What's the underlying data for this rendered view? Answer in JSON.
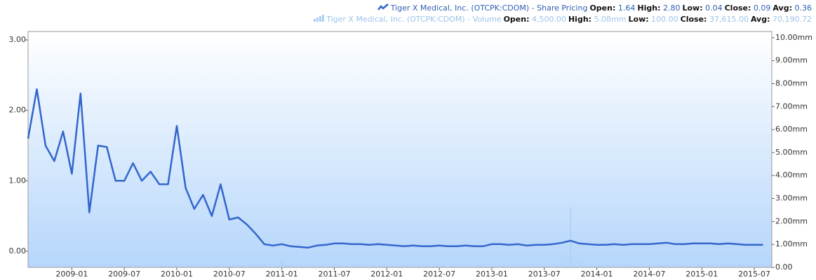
{
  "chart_data": {
    "type": "line",
    "legend": [
      {
        "name": "Tiger X Medical, Inc. (OTCPK:CDOM) - Share Pricing",
        "stats": [
          {
            "label": "Open:",
            "value": "1.64"
          },
          {
            "label": "High:",
            "value": "2.80"
          },
          {
            "label": "Low:",
            "value": "0.04"
          },
          {
            "label": "Close:",
            "value": "0.09"
          },
          {
            "label": "Avg:",
            "value": "0.36"
          }
        ]
      },
      {
        "name": "Tiger X Medical, Inc. (OTCPK:CDOM) - Volume",
        "stats": [
          {
            "label": "Open:",
            "value": "4,500.00"
          },
          {
            "label": "High:",
            "value": "5.08mm"
          },
          {
            "label": "Low:",
            "value": "100.00"
          },
          {
            "label": "Close:",
            "value": "37,615.00"
          },
          {
            "label": "Avg:",
            "value": "70,190.72"
          }
        ]
      }
    ],
    "x": [
      "2008-08",
      "2008-09",
      "2008-10",
      "2008-11",
      "2008-12",
      "2009-01",
      "2009-02",
      "2009-03",
      "2009-04",
      "2009-05",
      "2009-06",
      "2009-07",
      "2009-08",
      "2009-09",
      "2009-10",
      "2009-11",
      "2009-12",
      "2010-01",
      "2010-02",
      "2010-03",
      "2010-04",
      "2010-05",
      "2010-06",
      "2010-07",
      "2010-08",
      "2010-09",
      "2010-10",
      "2010-11",
      "2010-12",
      "2011-01",
      "2011-02",
      "2011-03",
      "2011-04",
      "2011-05",
      "2011-06",
      "2011-07",
      "2011-08",
      "2011-09",
      "2011-10",
      "2011-11",
      "2011-12",
      "2012-01",
      "2012-02",
      "2012-03",
      "2012-04",
      "2012-05",
      "2012-06",
      "2012-07",
      "2012-08",
      "2012-09",
      "2012-10",
      "2012-11",
      "2012-12",
      "2013-01",
      "2013-02",
      "2013-03",
      "2013-04",
      "2013-05",
      "2013-06",
      "2013-07",
      "2013-08",
      "2013-09",
      "2013-10",
      "2013-11",
      "2013-12",
      "2014-01",
      "2014-02",
      "2014-03",
      "2014-04",
      "2014-05",
      "2014-06",
      "2014-07",
      "2014-08",
      "2014-09",
      "2014-10",
      "2014-11",
      "2014-12",
      "2015-01",
      "2015-02",
      "2015-03",
      "2015-04",
      "2015-05",
      "2015-06",
      "2015-07",
      "2015-08"
    ],
    "series": [
      {
        "name": "Share Pricing",
        "color": "#3366cc",
        "values": [
          1.6,
          2.3,
          1.5,
          1.28,
          1.7,
          1.1,
          2.24,
          0.55,
          1.5,
          1.48,
          1.0,
          1.0,
          1.25,
          1.0,
          1.13,
          0.95,
          0.95,
          1.78,
          0.9,
          0.6,
          0.8,
          0.5,
          0.95,
          0.45,
          0.48,
          0.38,
          0.25,
          0.1,
          0.08,
          0.1,
          0.07,
          0.06,
          0.05,
          0.08,
          0.09,
          0.11,
          0.11,
          0.1,
          0.1,
          0.09,
          0.1,
          0.09,
          0.08,
          0.07,
          0.08,
          0.07,
          0.07,
          0.08,
          0.07,
          0.07,
          0.08,
          0.07,
          0.07,
          0.1,
          0.1,
          0.09,
          0.1,
          0.08,
          0.09,
          0.09,
          0.1,
          0.12,
          0.15,
          0.11,
          0.1,
          0.09,
          0.09,
          0.1,
          0.09,
          0.1,
          0.1,
          0.1,
          0.11,
          0.12,
          0.1,
          0.1,
          0.11,
          0.11,
          0.11,
          0.1,
          0.11,
          0.1,
          0.09,
          0.09,
          0.09
        ]
      },
      {
        "name": "Volume",
        "color": "#a9d0f5",
        "axis": "y2",
        "values": [
          20000,
          30000,
          25000,
          20000,
          30000,
          40000,
          60000,
          30000,
          20000,
          20000,
          15000,
          15000,
          20000,
          20000,
          15000,
          20000,
          30000,
          80000,
          40000,
          30000,
          30000,
          25000,
          40000,
          30000,
          40000,
          50000,
          60000,
          120000,
          80000,
          250000,
          60000,
          40000,
          30000,
          40000,
          30000,
          50000,
          30000,
          30000,
          20000,
          30000,
          30000,
          30000,
          20000,
          30000,
          20000,
          20000,
          30000,
          20000,
          20000,
          20000,
          30000,
          20000,
          20000,
          60000,
          40000,
          30000,
          30000,
          30000,
          40000,
          40000,
          60000,
          150000,
          2600000,
          200000,
          80000,
          60000,
          40000,
          40000,
          30000,
          40000,
          40000,
          30000,
          40000,
          60000,
          40000,
          30000,
          40000,
          40000,
          40000,
          30000,
          30000,
          30000,
          30000,
          30000,
          30000
        ]
      }
    ],
    "xlim": [
      "2008-08",
      "2015-09"
    ],
    "xticks": [
      "2009-01",
      "2009-07",
      "2010-01",
      "2010-07",
      "2011-01",
      "2011-07",
      "2012-01",
      "2012-07",
      "2013-01",
      "2013-07",
      "2014-01",
      "2014-07",
      "2015-01",
      "2015-07"
    ],
    "ylim": [
      -0.23,
      3.12
    ],
    "yticks": [
      {
        "value": 0,
        "label": "0.00"
      },
      {
        "value": 1,
        "label": "1.00"
      },
      {
        "value": 2,
        "label": "2.00"
      },
      {
        "value": 3,
        "label": "3.00"
      }
    ],
    "y2lim": [
      0,
      10270000
    ],
    "y2ticks": [
      {
        "value": 0,
        "label": "0.00"
      },
      {
        "value": 1000000,
        "label": "1.00mm"
      },
      {
        "value": 2000000,
        "label": "2.00mm"
      },
      {
        "value": 3000000,
        "label": "3.00mm"
      },
      {
        "value": 4000000,
        "label": "4.00mm"
      },
      {
        "value": 5000000,
        "label": "5.00mm"
      },
      {
        "value": 6000000,
        "label": "6.00mm"
      },
      {
        "value": 7000000,
        "label": "7.00mm"
      },
      {
        "value": 8000000,
        "label": "8.00mm"
      },
      {
        "value": 9000000,
        "label": "9.00mm"
      },
      {
        "value": 10000000,
        "label": "10.00mm"
      }
    ]
  }
}
